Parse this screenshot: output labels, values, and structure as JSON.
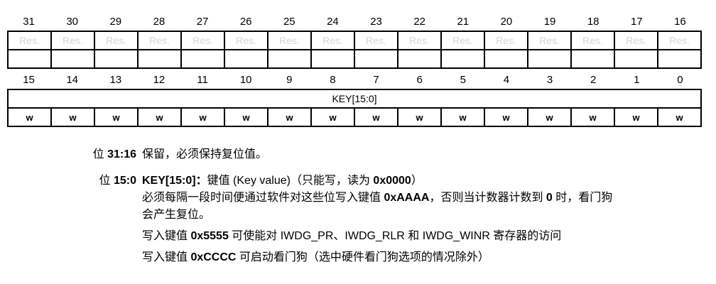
{
  "register": {
    "high_bits": [
      "31",
      "30",
      "29",
      "28",
      "27",
      "26",
      "25",
      "24",
      "23",
      "22",
      "21",
      "20",
      "19",
      "18",
      "17",
      "16"
    ],
    "high_fields": [
      "Res.",
      "Res.",
      "Res.",
      "Res.",
      "Res.",
      "Res.",
      "Res.",
      "Res.",
      "Res.",
      "Res.",
      "Res.",
      "Res.",
      "Res.",
      "Res.",
      "Res.",
      "Res."
    ],
    "high_empty": [
      "",
      "",
      "",
      "",
      "",
      "",
      "",
      "",
      "",
      "",
      "",
      "",
      "",
      "",
      "",
      ""
    ],
    "low_bits": [
      "15",
      "14",
      "13",
      "12",
      "11",
      "10",
      "9",
      "8",
      "7",
      "6",
      "5",
      "4",
      "3",
      "2",
      "1",
      "0"
    ],
    "key_field": "KEY[15:0]",
    "low_access": [
      "w",
      "w",
      "w",
      "w",
      "w",
      "w",
      "w",
      "w",
      "w",
      "w",
      "w",
      "w",
      "w",
      "w",
      "w",
      "w"
    ]
  },
  "descriptions": [
    {
      "term": [
        {
          "text": "位 ",
          "bold": false
        },
        {
          "text": "31:16",
          "bold": true
        }
      ],
      "lines": [
        [
          {
            "text": "保留，必须保持复位值。",
            "bold": false
          }
        ]
      ]
    },
    {
      "term": [
        {
          "text": "位 ",
          "bold": false
        },
        {
          "text": "15:0",
          "bold": true
        }
      ],
      "lines": [
        [
          {
            "text": "KEY[15:0]：",
            "bold": true
          },
          {
            "text": "键值 (Key value)（只能写，读为 ",
            "bold": false
          },
          {
            "text": "0x0000",
            "bold": true
          },
          {
            "text": "）",
            "bold": false
          }
        ],
        [
          {
            "text": "必须每隔一段时间便通过软件对这些位写入键值 ",
            "bold": false
          },
          {
            "text": "0xAAAA",
            "bold": true
          },
          {
            "text": "，否则当计数器计数到 ",
            "bold": false
          },
          {
            "text": "0",
            "bold": true
          },
          {
            "text": " 时，看门狗",
            "bold": false
          }
        ],
        [
          {
            "text": "会产生复位。",
            "bold": false
          }
        ],
        [
          {
            "text": "写入键值 ",
            "bold": false
          },
          {
            "text": "0x5555",
            "bold": true
          },
          {
            "text": " 可使能对 IWDG_PR、IWDG_RLR 和 IWDG_WINR 寄存器的访问",
            "bold": false
          }
        ],
        [
          {
            "text": "写入键值 ",
            "bold": false
          },
          {
            "text": "0xCCCC",
            "bold": true
          },
          {
            "text": " 可启动看门狗（选中硬件看门狗选项的情况除外）",
            "bold": false
          }
        ]
      ]
    }
  ],
  "colors": {
    "border": "#000000",
    "text": "#000000",
    "reserved_text": "#d6d6da",
    "page_bg": "#ffffff"
  }
}
